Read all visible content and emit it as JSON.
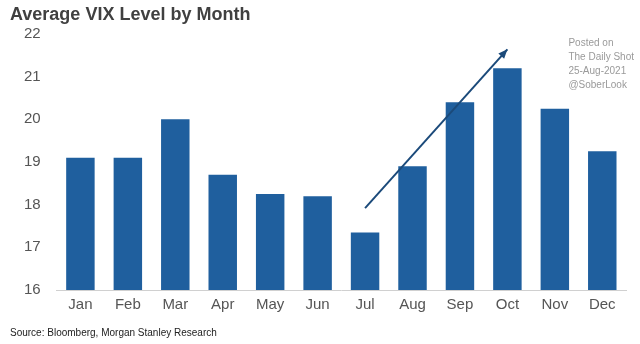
{
  "chart_data": {
    "type": "bar",
    "title": "Average VIX Level by Month",
    "source": "Source: Bloomberg, Morgan Stanley Research",
    "annotations": [
      "Posted on",
      "The Daily Shot",
      "25-Aug-2021",
      "@SoberLook"
    ],
    "categories": [
      "Jan",
      "Feb",
      "Mar",
      "Apr",
      "May",
      "Jun",
      "Jul",
      "Aug",
      "Sep",
      "Oct",
      "Nov",
      "Dec"
    ],
    "values": [
      19.1,
      19.1,
      20.0,
      18.7,
      18.25,
      18.2,
      17.35,
      18.9,
      20.4,
      21.2,
      20.25,
      19.25
    ],
    "color": "#1f5f9e",
    "ylim": [
      16,
      22
    ],
    "yticks": [
      16,
      17,
      18,
      19,
      20,
      21,
      22
    ],
    "grid": false
  }
}
